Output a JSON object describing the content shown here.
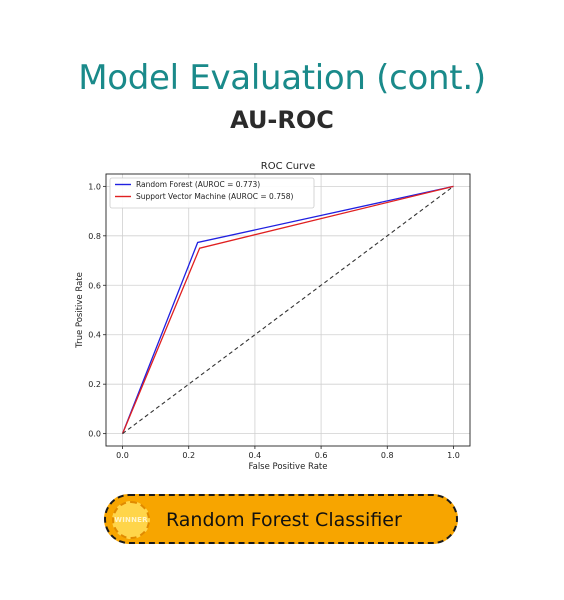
{
  "page": {
    "title": "Model Evaluation (cont.)",
    "subtitle": "AU-ROC"
  },
  "chart_data": {
    "type": "line",
    "title": "ROC Curve",
    "xlabel": "False Positive Rate",
    "ylabel": "True Positive Rate",
    "xlim": [
      -0.05,
      1.05
    ],
    "ylim": [
      -0.05,
      1.05
    ],
    "xticks": [
      "0.0",
      "0.2",
      "0.4",
      "0.6",
      "0.8",
      "1.0"
    ],
    "yticks": [
      "0.0",
      "0.2",
      "0.4",
      "0.6",
      "0.8",
      "1.0"
    ],
    "grid": true,
    "legend_position": "top-left",
    "series": [
      {
        "name": "Random Forest (AUROC = 0.773)",
        "color": "#2020e0",
        "x": [
          0,
          0.227,
          1
        ],
        "y": [
          0,
          0.773,
          1
        ]
      },
      {
        "name": "Support Vector Machine (AUROC = 0.758)",
        "color": "#e02020",
        "x": [
          0,
          0.233,
          1
        ],
        "y": [
          0,
          0.75,
          1
        ]
      },
      {
        "color": "#333333",
        "dashed": true,
        "x": [
          0,
          1
        ],
        "y": [
          0,
          1
        ]
      }
    ]
  },
  "winner": {
    "badge_text": "WINNER",
    "label": "Random Forest Classifier",
    "color": "#f7a500"
  }
}
